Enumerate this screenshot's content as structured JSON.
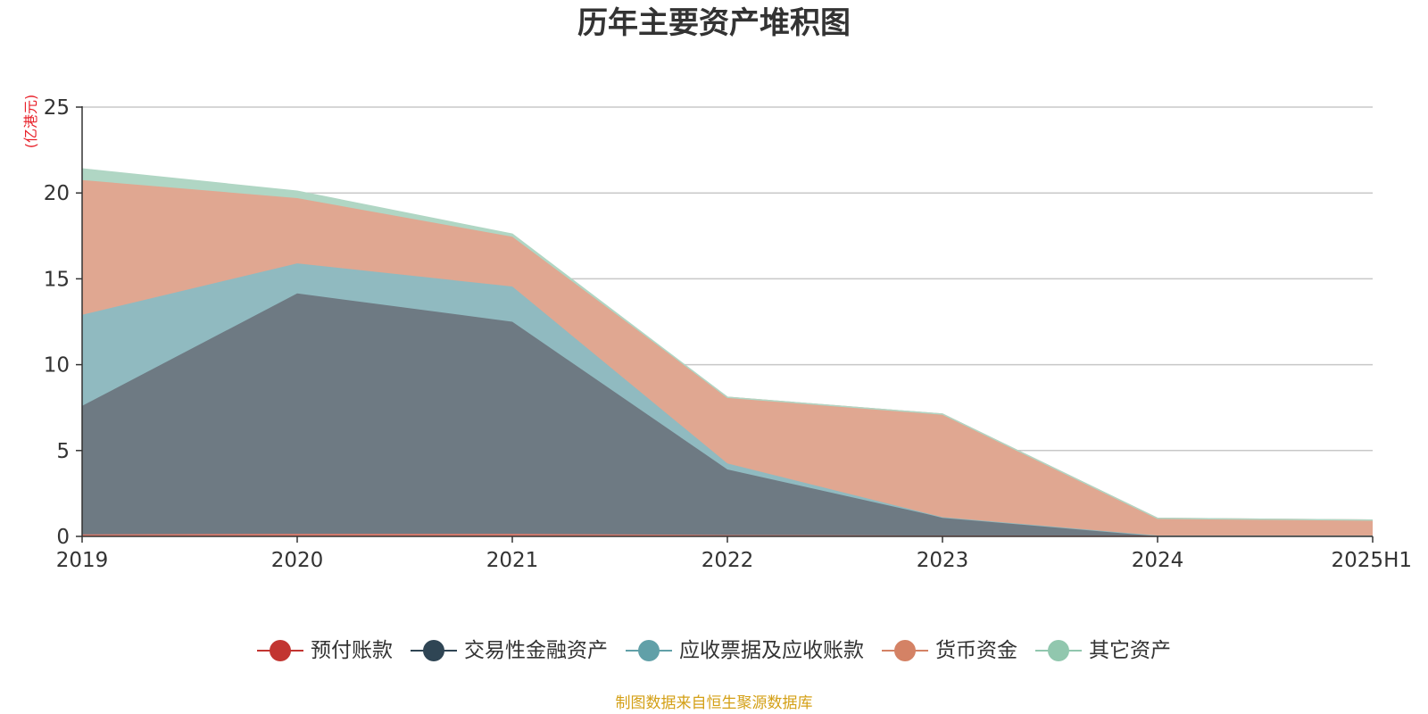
{
  "chart_data": {
    "type": "area",
    "stacked": true,
    "title": "历年主要资产堆积图",
    "y_unit": "(亿港元)",
    "categories": [
      "2019",
      "2020",
      "2021",
      "2022",
      "2023",
      "2024",
      "2025H1"
    ],
    "ylim": [
      0,
      25
    ],
    "yticks": [
      0,
      5,
      10,
      15,
      20,
      25
    ],
    "grid": true,
    "legend_position": "bottom",
    "series": [
      {
        "name": "预付账款",
        "color": "#c23531",
        "fill": "#d87a6c",
        "values": [
          0.12,
          0.15,
          0.15,
          0.08,
          0.05,
          0.05,
          0.05
        ]
      },
      {
        "name": "交易性金融资产",
        "color": "#2f4554",
        "fill": "#6e7a83",
        "values": [
          7.48,
          14.0,
          12.35,
          3.82,
          1.05,
          0.0,
          0.0
        ]
      },
      {
        "name": "应收票据及应收账款",
        "color": "#61a0a8",
        "fill": "#90bac0",
        "values": [
          5.3,
          1.75,
          2.05,
          0.35,
          0.02,
          0.0,
          0.0
        ]
      },
      {
        "name": "货币资金",
        "color": "#d48265",
        "fill": "#e0a791",
        "values": [
          7.85,
          3.8,
          2.9,
          3.85,
          6.0,
          1.0,
          0.9
        ]
      },
      {
        "name": "其它资产",
        "color": "#91c7ae",
        "fill": "#b0d6c4",
        "values": [
          0.65,
          0.4,
          0.15,
          0.0,
          0.0,
          0.0,
          0.0
        ]
      }
    ]
  },
  "footer": {
    "source_note": "制图数据来自恒生聚源数据库"
  }
}
